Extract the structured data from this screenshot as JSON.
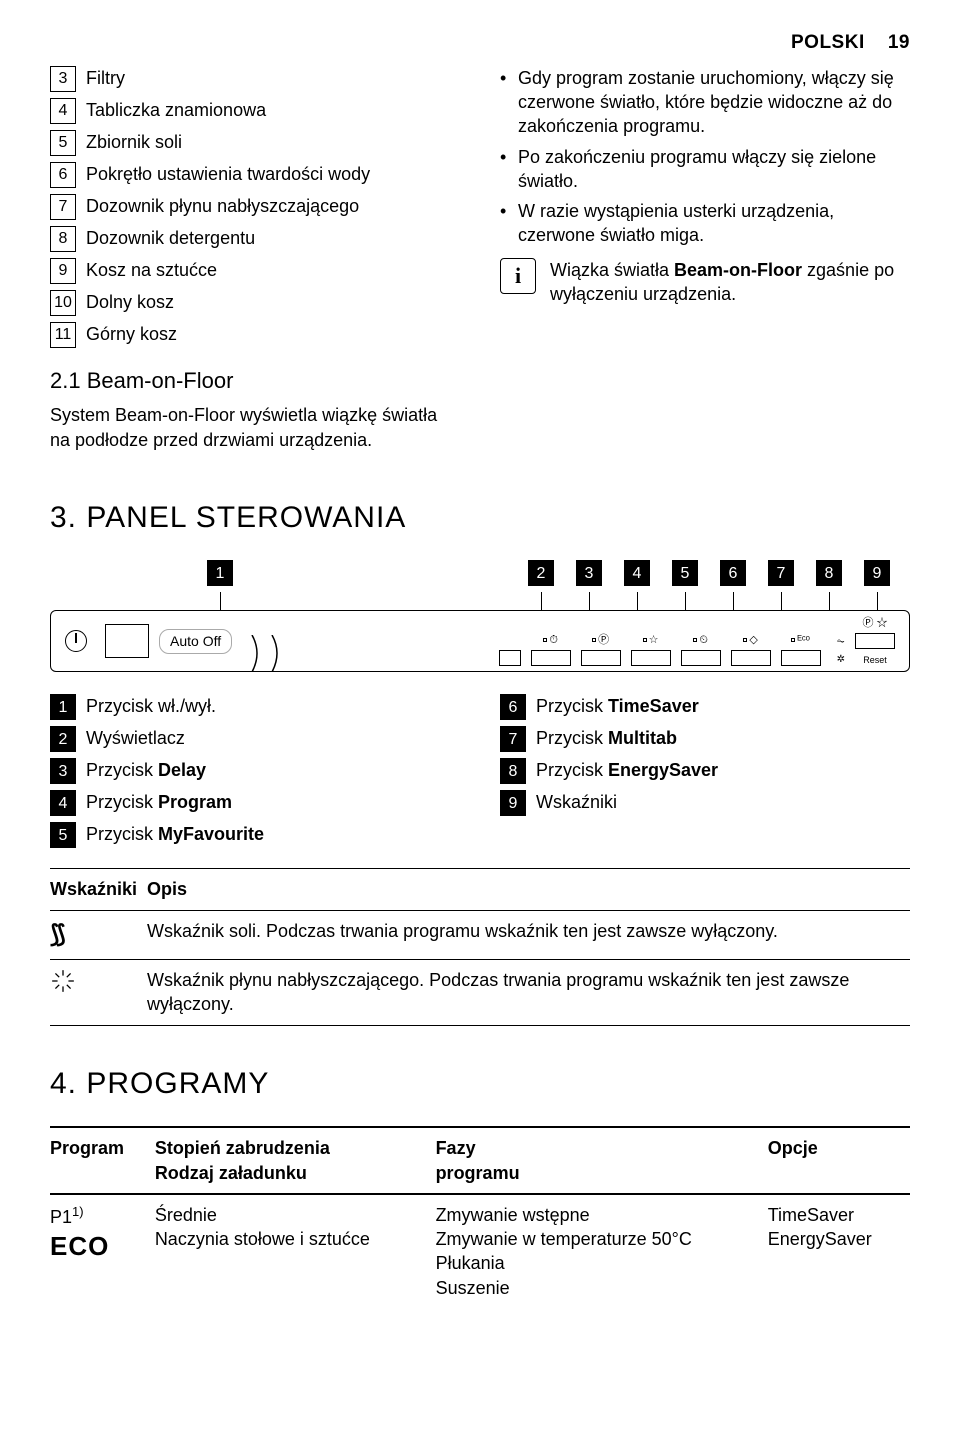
{
  "header": {
    "lang": "POLSKI",
    "page": "19"
  },
  "parts_list": [
    {
      "n": "3",
      "label": "Filtry"
    },
    {
      "n": "4",
      "label": "Tabliczka znamionowa"
    },
    {
      "n": "5",
      "label": "Zbiornik soli"
    },
    {
      "n": "6",
      "label": "Pokrętło ustawienia twardości wody"
    },
    {
      "n": "7",
      "label": "Dozownik płynu nabłyszczającego"
    },
    {
      "n": "8",
      "label": "Dozownik detergentu"
    },
    {
      "n": "9",
      "label": "Kosz na sztućce"
    },
    {
      "n": "10",
      "label": "Dolny kosz"
    },
    {
      "n": "11",
      "label": "Górny kosz"
    }
  ],
  "sub21": {
    "title": "2.1 Beam-on-Floor",
    "para": "System Beam-on-Floor wyświetla wiązkę światła na podłodze przed drzwiami urządzenia."
  },
  "right_bullets": [
    "Gdy program zostanie uruchomiony, włączy się czerwone światło, które będzie widoczne aż do zakończenia programu.",
    "Po zakończeniu programu włączy się zielone światło.",
    "W razie wystąpienia usterki urządzenia, czerwone światło miga."
  ],
  "info_note": "Wiązka światła Beam-on-Floor zgaśnie po wyłączeniu urządzenia.",
  "section3": "3. PANEL STEROWANIA",
  "panel": {
    "auto_off": "Auto Off",
    "reset": "Reset",
    "callouts": [
      "1",
      "2",
      "3",
      "4",
      "5",
      "6",
      "7",
      "8",
      "9"
    ]
  },
  "legend_left": [
    {
      "n": "1",
      "label": "Przycisk wł./wył."
    },
    {
      "n": "2",
      "label": "Wyświetlacz"
    },
    {
      "n": "3",
      "label_pre": "Przycisk ",
      "label_b": "Delay"
    },
    {
      "n": "4",
      "label_pre": "Przycisk ",
      "label_b": "Program"
    },
    {
      "n": "5",
      "label_pre": "Przycisk ",
      "label_b": "MyFavourite"
    }
  ],
  "legend_right": [
    {
      "n": "6",
      "label_pre": "Przycisk ",
      "label_b": "TimeSaver"
    },
    {
      "n": "7",
      "label_pre": "Przycisk ",
      "label_b": "Multitab"
    },
    {
      "n": "8",
      "label_pre": "Przycisk ",
      "label_b": "EnergySaver"
    },
    {
      "n": "9",
      "label": "Wskaźniki"
    }
  ],
  "ind_table": {
    "h1": "Wskaźniki",
    "h2": "Opis",
    "rows": [
      {
        "icon": "salt",
        "desc": "Wskaźnik soli. Podczas trwania programu wskaźnik ten jest zawsze wyłączony."
      },
      {
        "icon": "rinse",
        "desc": "Wskaźnik płynu nabłyszczającego. Podczas trwania programu wskaźnik ten jest zawsze wyłączony."
      }
    ]
  },
  "section4": "4. PROGRAMY",
  "prog_table": {
    "headers": [
      "Program",
      "Stopień zabrudzenia\nRodzaj załadunku",
      "Fazy\nprogramu",
      "Opcje"
    ],
    "row": {
      "p": "P1",
      "sup": "1)",
      "eco": "ECO",
      "col2": "Średnie\nNaczynia stołowe i sztućce",
      "col3": "Zmywanie wstępne\nZmywanie w temperaturze 50°C\nPłukania\nSuszenie",
      "col4": "TimeSaver\nEnergySaver"
    }
  }
}
